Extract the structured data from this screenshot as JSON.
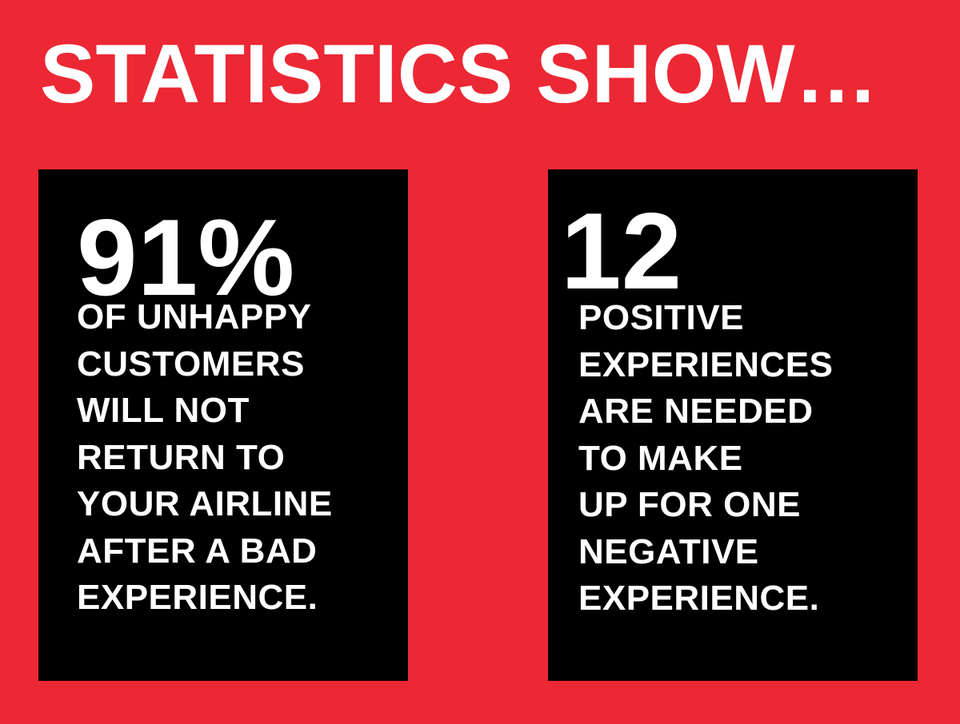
{
  "headline": "STATISTICS SHOW…",
  "colors": {
    "background": "#ec2834",
    "card": "#000000",
    "text": "#ffffff"
  },
  "cards": [
    {
      "stat": "91%",
      "lines": [
        "OF UNHAPPY",
        "CUSTOMERS",
        "WILL NOT",
        "RETURN TO",
        "YOUR AIRLINE",
        "AFTER A BAD",
        "EXPERIENCE."
      ]
    },
    {
      "stat": "12",
      "lines": [
        "POSITIVE",
        "EXPERIENCES",
        "ARE NEEDED",
        "TO MAKE",
        "UP FOR ONE",
        "NEGATIVE",
        "EXPERIENCE."
      ]
    }
  ]
}
